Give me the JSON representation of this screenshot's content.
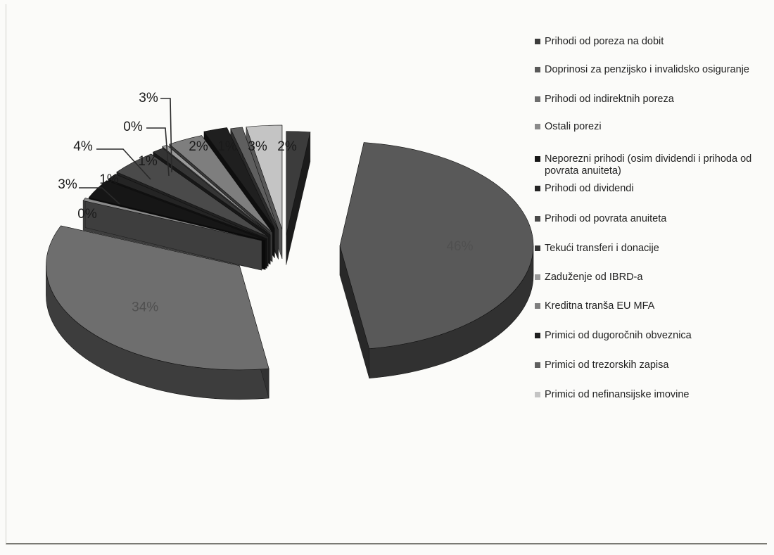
{
  "chart_data": {
    "type": "pie",
    "style": "3d-exploded",
    "title": "",
    "legend_position": "right",
    "slices": [
      {
        "label": "Prihodi od poreza na dobit",
        "value": 2,
        "value_label": "2%",
        "color": "#3c3c3c"
      },
      {
        "label": "Doprinosi za penzijsko i invalidsko osiguranje",
        "value": 46,
        "value_label": "46%",
        "color": "#595959"
      },
      {
        "label": "Prihodi od indirektnih poreza",
        "value": 34,
        "value_label": "34%",
        "color": "#6e6e6e"
      },
      {
        "label": "Ostali porezi",
        "value": 0,
        "value_label": "0%",
        "color": "#8a8a8a"
      },
      {
        "label": "Neporezni prihodi (osim dividendi i prihoda od povrata anuiteta)",
        "value": 3,
        "value_label": "3%",
        "color": "#161616"
      },
      {
        "label": "Prihodi od dividendi",
        "value": 1,
        "value_label": "1%",
        "color": "#242424"
      },
      {
        "label": "Prihodi od povrata anuiteta",
        "value": 4,
        "value_label": "4%",
        "color": "#4a4a4a"
      },
      {
        "label": "Tekući transferi i donacije",
        "value": 1,
        "value_label": "1%",
        "color": "#343434"
      },
      {
        "label": "Zaduženje od IBRD-a",
        "value": 0,
        "value_label": "0%",
        "color": "#9a9a9a"
      },
      {
        "label": "Kreditna tranša EU MFA",
        "value": 3,
        "value_label": "3%",
        "color": "#7e7e7e"
      },
      {
        "label": "Primici od dugoročnih obveznica",
        "value": 2,
        "value_label": "2%",
        "color": "#1f1f1f"
      },
      {
        "label": "Primici od trezorskih zapisa",
        "value": 1,
        "value_label": "1%",
        "color": "#5f5f5f"
      },
      {
        "label": "Primici od nefinansijske imovine",
        "value": 3,
        "value_label": "3%",
        "color": "#c4c4c4"
      }
    ]
  }
}
